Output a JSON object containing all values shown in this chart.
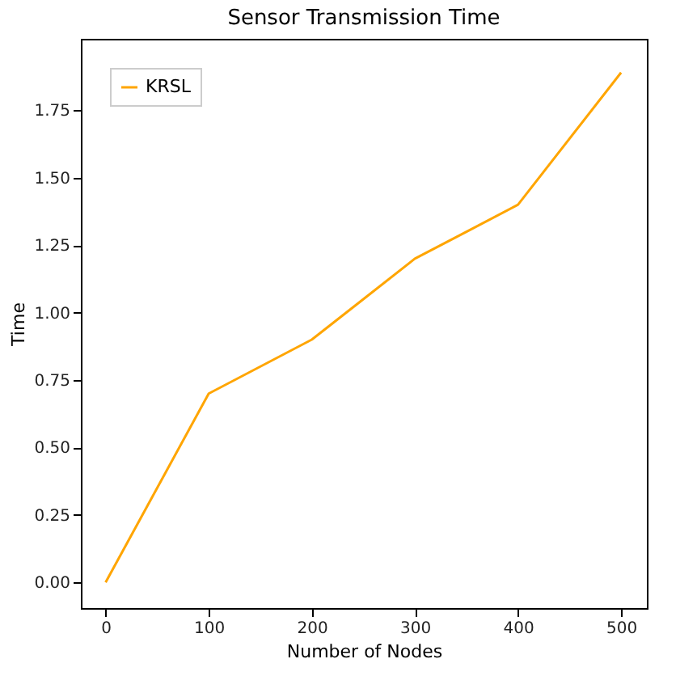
{
  "chart_data": {
    "type": "line",
    "title": "Sensor Transmission Time",
    "xlabel": "Number of Nodes",
    "ylabel": "Time",
    "x": [
      0,
      100,
      200,
      250,
      300,
      350,
      400,
      500
    ],
    "series": [
      {
        "name": "KRSL",
        "color": "#ffa500",
        "values": [
          0,
          0.7,
          0.9,
          1.05,
          1.2,
          1.3,
          1.4,
          1.89
        ]
      }
    ],
    "xlim": [
      -24,
      525
    ],
    "xticks": [
      0,
      100,
      200,
      300,
      400,
      500
    ],
    "ylim": [
      -0.095,
      2.015
    ],
    "yticks": [
      {
        "value": 0,
        "label": "0.00"
      },
      {
        "value": 0.25,
        "label": "0.25"
      },
      {
        "value": 0.5,
        "label": "0.50"
      },
      {
        "value": 0.75,
        "label": "0.75"
      },
      {
        "value": 1,
        "label": "1.00"
      },
      {
        "value": 1.25,
        "label": "1.25"
      },
      {
        "value": 1.5,
        "label": "1.50"
      },
      {
        "value": 1.75,
        "label": "1.75"
      }
    ],
    "legend": "top left",
    "grid": false
  }
}
